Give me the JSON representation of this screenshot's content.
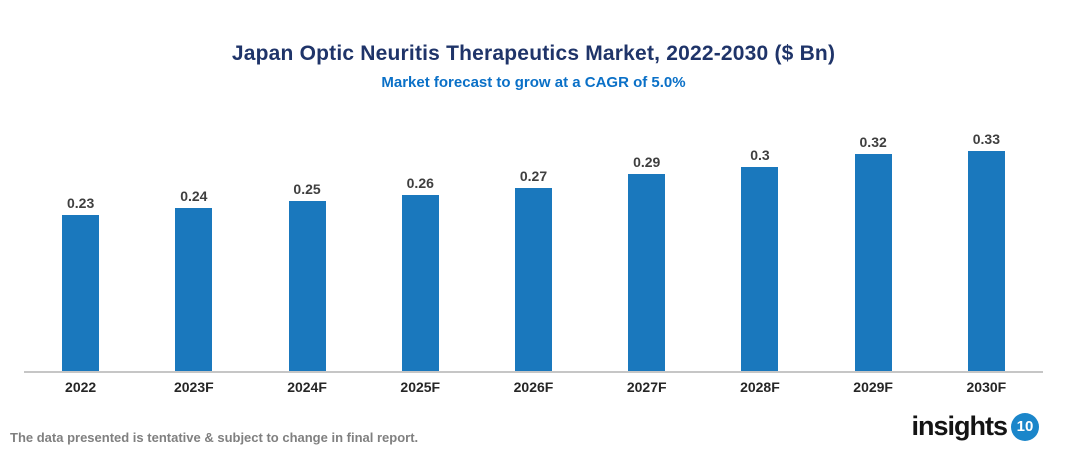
{
  "header": {
    "title": "Japan Optic Neuritis Therapeutics Market, 2022-2030 ($ Bn)",
    "subtitle": "Market forecast to grow at a CAGR of 5.0%"
  },
  "chart_data": {
    "type": "bar",
    "title": "Japan Optic Neuritis Therapeutics Market, 2022-2030 ($ Bn)",
    "subtitle": "Market forecast to grow at a CAGR of 5.0%",
    "categories": [
      "2022",
      "2023F",
      "2024F",
      "2025F",
      "2026F",
      "2027F",
      "2028F",
      "2029F",
      "2030F"
    ],
    "values": [
      0.23,
      0.24,
      0.25,
      0.26,
      0.27,
      0.29,
      0.3,
      0.32,
      0.33
    ],
    "xlabel": "",
    "ylabel": "",
    "unit": "$ Bn",
    "ylim": [
      0,
      0.35
    ],
    "grid": false,
    "legend": "none",
    "data_labels": true,
    "bar_color": "#1a78bd"
  },
  "footer": {
    "disclaimer": "The data presented is tentative & subject to change in final report.",
    "logo_text": "insights",
    "logo_badge": "10"
  },
  "colors": {
    "title": "#1f3469",
    "subtitle": "#0a70c7",
    "bar": "#1a78bd",
    "axis_line": "#c6c6c6",
    "value_label": "#3f3f3f",
    "x_label": "#262626",
    "footer_text": "#808080",
    "logo_badge_bg": "#1b86ca"
  }
}
